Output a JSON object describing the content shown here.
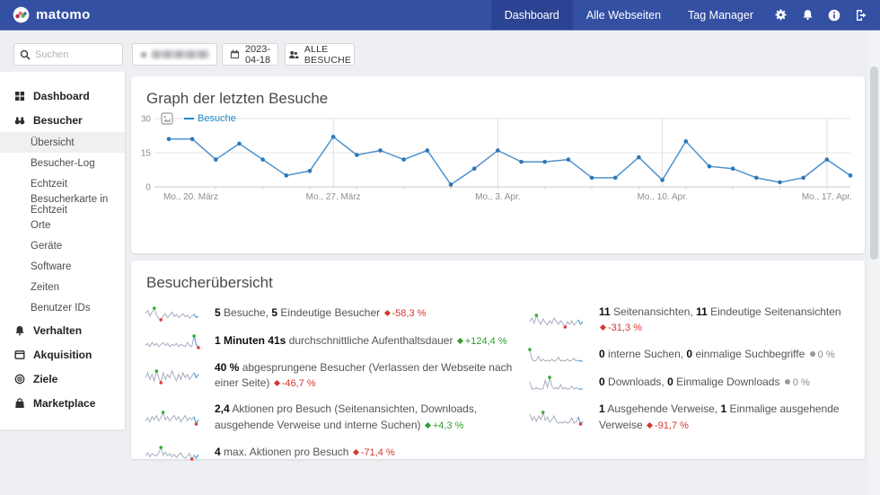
{
  "navbar": {
    "brand": "matomo",
    "tabs": [
      {
        "label": "Dashboard",
        "active": true
      },
      {
        "label": "Alle Webseiten",
        "active": false
      },
      {
        "label": "Tag Manager",
        "active": false
      }
    ],
    "icon_buttons": [
      "settings-icon",
      "alerts-icon",
      "info-icon",
      "logout-icon"
    ]
  },
  "topbar": {
    "search_placeholder": "Suchen",
    "date_label": "2023-04-18",
    "segment_label": "ALLE BESUCHE"
  },
  "sidebar": {
    "sections": [
      {
        "label": "Dashboard",
        "icon": "dashboard-icon"
      },
      {
        "label": "Besucher",
        "icon": "visitors-icon"
      },
      {
        "label": "Verhalten",
        "icon": "behaviour-icon"
      },
      {
        "label": "Akquisition",
        "icon": "acquisition-icon"
      },
      {
        "label": "Ziele",
        "icon": "goals-icon"
      },
      {
        "label": "Marketplace",
        "icon": "marketplace-icon"
      }
    ],
    "besucher_children": [
      "Übersicht",
      "Besucher-Log",
      "Echtzeit",
      "Besucherkarte in Echtzeit",
      "Orte",
      "Geräte",
      "Software",
      "Zeiten",
      "Benutzer IDs"
    ],
    "active_item": "Übersicht"
  },
  "cards": {
    "graph": {
      "title": "Graph der letzten Besuche"
    },
    "overview": {
      "title": "Besucherübersicht",
      "left_rows": [
        {
          "segments": [
            {
              "t": "5",
              "b": true
            },
            {
              "t": " Besuche, "
            },
            {
              "t": "5",
              "b": true
            },
            {
              "t": " Eindeutige Besucher "
            }
          ],
          "evolution": {
            "value": "-58,3 %",
            "dir": "down"
          },
          "spark": [
            9,
            13,
            6,
            11,
            16,
            7,
            3,
            1,
            6,
            9,
            4,
            7,
            11,
            5,
            8,
            4,
            6,
            9,
            5,
            7,
            3,
            6,
            8,
            4,
            5
          ]
        },
        {
          "segments": [
            {
              "t": "1 Minuten 41s",
              "b": true
            },
            {
              "t": " durchschnittliche Aufenthaltsdauer "
            }
          ],
          "evolution": {
            "value": "+124,4 %",
            "dir": "up"
          },
          "spark": [
            3,
            5,
            2,
            6,
            3,
            5,
            2,
            4,
            6,
            3,
            5,
            2,
            4,
            3,
            5,
            2,
            4,
            3,
            2,
            6,
            3,
            2,
            12,
            4,
            1
          ]
        },
        {
          "segments": [
            {
              "t": "40 %",
              "b": true
            },
            {
              "t": " abgesprungene Besucher (Verlassen der Webseite nach einer Seite) "
            }
          ],
          "evolution": {
            "value": "-46,7 %",
            "dir": "down"
          },
          "spark": [
            6,
            9,
            5,
            8,
            4,
            10,
            6,
            3,
            9,
            5,
            8,
            6,
            10,
            7,
            4,
            8,
            5,
            9,
            6,
            8,
            5,
            7,
            9,
            6,
            8
          ]
        },
        {
          "segments": [
            {
              "t": "2,4",
              "b": true
            },
            {
              "t": " Aktionen pro Besuch (Seitenansichten, Downloads, ausgehende Verweise und interne Suchen) "
            }
          ],
          "evolution": {
            "value": "+4,3 %",
            "dir": "up"
          },
          "spark": [
            5,
            8,
            4,
            9,
            6,
            10,
            5,
            8,
            13,
            6,
            9,
            5,
            8,
            10,
            6,
            9,
            4,
            7,
            10,
            5,
            8,
            6,
            9,
            2,
            6
          ]
        },
        {
          "segments": [
            {
              "t": "4",
              "b": true
            },
            {
              "t": " max. Aktionen pro Besuch "
            }
          ],
          "evolution": {
            "value": "-71,4 %",
            "dir": "down"
          },
          "spark": [
            5,
            9,
            4,
            8,
            6,
            5,
            9,
            16,
            6,
            10,
            5,
            8,
            4,
            7,
            3,
            6,
            9,
            4,
            2,
            5,
            8,
            1,
            6,
            2,
            7
          ]
        }
      ],
      "right_rows": [
        {
          "segments": [
            {
              "t": "11",
              "b": true
            },
            {
              "t": " Seitenansichten, "
            },
            {
              "t": "11",
              "b": true
            },
            {
              "t": " Eindeutige Seitenansichten "
            }
          ],
          "evolution": {
            "value": "-31,3 %",
            "dir": "down"
          },
          "spark": [
            8,
            12,
            6,
            15,
            9,
            5,
            11,
            7,
            4,
            9,
            6,
            12,
            8,
            5,
            9,
            6,
            2,
            8,
            5,
            9,
            4,
            7,
            10,
            5,
            8
          ]
        },
        {
          "segments": [
            {
              "t": "0",
              "b": true
            },
            {
              "t": " interne Suchen, "
            },
            {
              "t": "0",
              "b": true
            },
            {
              "t": " einmalige Suchbegriffe "
            }
          ],
          "evolution": {
            "value": "0 %",
            "dir": "flat"
          },
          "show_min": false,
          "spark": [
            13,
            3,
            1,
            2,
            6,
            1,
            3,
            1,
            2,
            1,
            3,
            1,
            2,
            5,
            1,
            2,
            1,
            3,
            1,
            2,
            4,
            1,
            2,
            1,
            1
          ]
        },
        {
          "segments": [
            {
              "t": "0",
              "b": true
            },
            {
              "t": " Downloads, "
            },
            {
              "t": "0",
              "b": true
            },
            {
              "t": " Einmalige Downloads "
            }
          ],
          "evolution": {
            "value": "0 %",
            "dir": "flat"
          },
          "show_min": false,
          "spark": [
            6,
            1,
            1,
            2,
            1,
            1,
            1,
            7,
            2,
            9,
            3,
            1,
            2,
            1,
            4,
            1,
            2,
            1,
            1,
            3,
            1,
            2,
            1,
            1,
            1
          ]
        },
        {
          "segments": [
            {
              "t": "1",
              "b": true
            },
            {
              "t": " Ausgehende Verweise, "
            },
            {
              "t": "1",
              "b": true
            },
            {
              "t": " Einmalige ausgehende Verweise "
            }
          ],
          "evolution": {
            "value": "-91,7 %",
            "dir": "down"
          },
          "spark": [
            12,
            5,
            9,
            4,
            10,
            6,
            14,
            5,
            9,
            3,
            6,
            10,
            4,
            2,
            3,
            2,
            4,
            2,
            3,
            8,
            2,
            3,
            9,
            1,
            4
          ]
        }
      ]
    }
  },
  "chart_data": {
    "type": "line",
    "title": "Graph der letzten Besuche",
    "ylim": [
      0,
      30
    ],
    "yticks": [
      0,
      15,
      30
    ],
    "grid": true,
    "legend_position": "top-left",
    "x_ticks": [
      {
        "index": 0,
        "label": "Mo., 20. März"
      },
      {
        "index": 7,
        "label": "Mo., 27. März"
      },
      {
        "index": 14,
        "label": "Mo., 3. Apr."
      },
      {
        "index": 21,
        "label": "Mo., 10. Apr."
      },
      {
        "index": 28,
        "label": "Mo., 17. Apr."
      }
    ],
    "series": [
      {
        "name": "Besuche",
        "color": "#4f93ce",
        "dot_color": "#2e77b5",
        "values": [
          21,
          21,
          12,
          19,
          12,
          5,
          7,
          22,
          14,
          16,
          12,
          16,
          1,
          8,
          16,
          11,
          11,
          12,
          4,
          4,
          13,
          3,
          20,
          9,
          8,
          4,
          2,
          4,
          12,
          5
        ]
      }
    ]
  }
}
